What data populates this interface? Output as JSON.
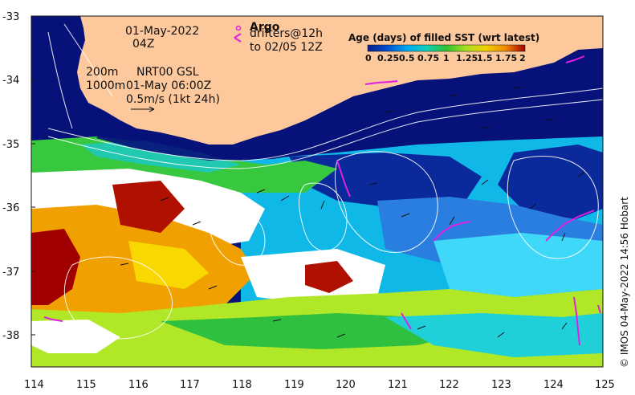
{
  "map": {
    "lon_ticks": [
      "114",
      "115",
      "116",
      "117",
      "118",
      "119",
      "120",
      "121",
      "122",
      "123",
      "124",
      "125"
    ],
    "lat_ticks": [
      "-33",
      "-34",
      "-35",
      "-36",
      "-37",
      "-38"
    ],
    "date_line": "01-May-2022",
    "time_line": "04Z",
    "depth_line_1": "200m",
    "depth_line_2": "1000m",
    "source_line": "NRT00 GSL",
    "valid_line": "01-May 06:00Z",
    "scale_line": "0.5m/s (1kt 24h)",
    "argo_label": "Argo",
    "drifters_line_1": "drifters@12h",
    "drifters_line_2": "to 02/05 12Z",
    "colorbar_title": "Age (days) of filled SST (wrt latest)",
    "colorbar_ticks": [
      "0",
      "0.25",
      "0.5",
      "0.75",
      "1",
      "1.25",
      "1.5",
      "1.75",
      "2"
    ],
    "credit": "© IMOS 04-May-2022 14:56 Hobart",
    "colors": {
      "land": "#fcc89c",
      "deep_navy": "#06127a",
      "argo_marker": "#e020e0",
      "colorbar": [
        "#0a1e8c",
        "#0050d0",
        "#00a8f0",
        "#10d0b8",
        "#30c030",
        "#a8e020",
        "#f0d000",
        "#f08c00",
        "#a00000"
      ]
    }
  }
}
